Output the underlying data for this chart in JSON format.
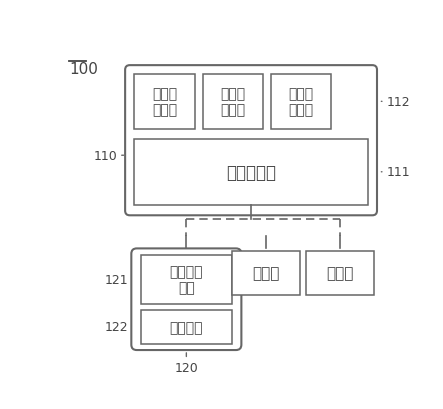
{
  "bg_color": "#ffffff",
  "title_label": "100",
  "label_110": "110",
  "label_111": "111",
  "label_112": "112",
  "label_120": "120",
  "label_121": "121",
  "label_122": "122",
  "aux_text": [
    "辅助处\n理模块",
    "辅助处\n理模块",
    "辅助处\n理模块"
  ],
  "main_text": "主处理模块",
  "speaker_text": "公共播音\n喇叭",
  "mic_text": "拾音模块",
  "controlled1_text": "受控端",
  "controlled2_text": "受控端",
  "box_color": "#ffffff",
  "border_color": "#666666",
  "dashed_color": "#666666",
  "text_color": "#444444",
  "font_size": 10,
  "small_font_size": 9
}
